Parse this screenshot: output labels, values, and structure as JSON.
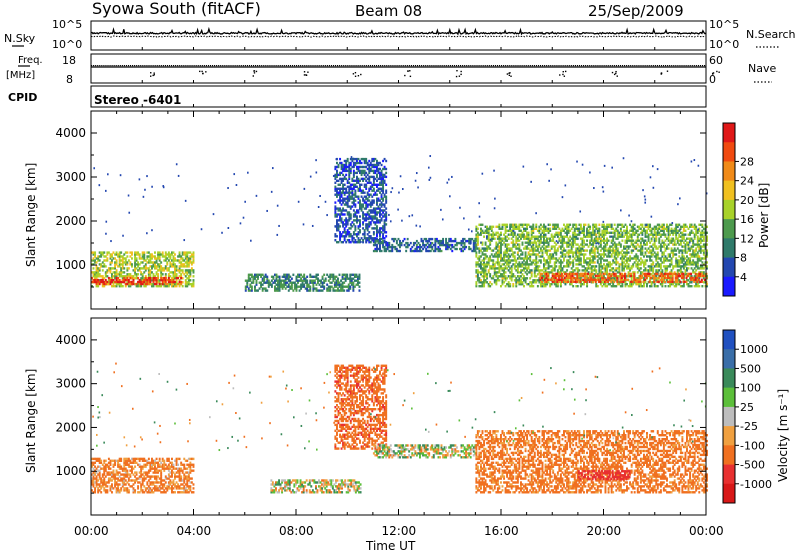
{
  "header": {
    "station": "Syowa South (fitACF)",
    "beam": "Beam 08",
    "date": "25/Sep/2009"
  },
  "noise_panel": {
    "left_label": "N.Sky",
    "right_label": "N.Search",
    "ticks_top": "10^5",
    "ticks_bottom": "10^0"
  },
  "freq_panel": {
    "left_label_1": "Freq.",
    "left_label_2": "[MHz]",
    "left_top": "18",
    "left_bottom": "8",
    "right_top": "60",
    "right_bottom": "0",
    "right_label": "Nave"
  },
  "cpid_panel": {
    "label": "CPID",
    "value": "Stereo -6401"
  },
  "time_axis": {
    "label": "Time UT",
    "ticks": [
      "00:00",
      "04:00",
      "08:00",
      "12:00",
      "16:00",
      "20:00",
      "00:00"
    ]
  },
  "range_axis": {
    "label": "Slant Range [km]",
    "ticks": [
      "1000",
      "2000",
      "3000",
      "4000"
    ]
  },
  "power_scale": {
    "label": "Power [dB]",
    "ticks": [
      "4",
      "8",
      "12",
      "16",
      "20",
      "24",
      "28"
    ],
    "colors": [
      "#1a1aff",
      "#2347b0",
      "#2f7a6a",
      "#4d9a4d",
      "#a8d22a",
      "#f0c020",
      "#f08a18",
      "#f04a10",
      "#e01818"
    ]
  },
  "velocity_scale": {
    "label": "Velocity [m s⁻¹]",
    "ticks": [
      "1000",
      "500",
      "100",
      "25",
      "-25",
      "-100",
      "-500",
      "-1000"
    ],
    "colors": [
      "#2050c0",
      "#3a6ea8",
      "#3a8a5a",
      "#5cbf3a",
      "#bdbdbd",
      "#f0a040",
      "#f07020",
      "#e83030",
      "#d81818"
    ]
  },
  "chart_data": [
    {
      "type": "heatmap",
      "title": "Power",
      "xlabel": "Time UT",
      "ylabel": "Slant Range [km]",
      "xlim": [
        "00:00",
        "24:00"
      ],
      "ylim": [
        0,
        4500
      ],
      "colorbar": "Power [dB]",
      "clim": [
        0,
        32
      ],
      "echo_regions": [
        {
          "t_start": 0.0,
          "t_end": 4.0,
          "range_start": 500,
          "range_end": 1300,
          "power_db": 16
        },
        {
          "t_start": 0.0,
          "t_end": 3.5,
          "range_start": 550,
          "range_end": 700,
          "power_db": 28
        },
        {
          "t_start": 6.0,
          "t_end": 10.5,
          "range_start": 400,
          "range_end": 800,
          "power_db": 10
        },
        {
          "t_start": 9.5,
          "t_end": 11.5,
          "range_start": 1500,
          "range_end": 3400,
          "power_db": 6
        },
        {
          "t_start": 11.0,
          "t_end": 15.0,
          "range_start": 1300,
          "range_end": 1600,
          "power_db": 7
        },
        {
          "t_start": 15.0,
          "t_end": 24.0,
          "range_start": 500,
          "range_end": 1900,
          "power_db": 14
        },
        {
          "t_start": 17.5,
          "t_end": 24.0,
          "range_start": 600,
          "range_end": 800,
          "power_db": 26
        }
      ]
    },
    {
      "type": "heatmap",
      "title": "Velocity",
      "xlabel": "Time UT",
      "ylabel": "Slant Range [km]",
      "xlim": [
        "00:00",
        "24:00"
      ],
      "ylim": [
        0,
        4500
      ],
      "colorbar": "Velocity [m s⁻¹]",
      "clim": [
        -1000,
        1000
      ],
      "echo_regions": [
        {
          "t_start": 0.0,
          "t_end": 4.0,
          "range_start": 500,
          "range_end": 1300,
          "velocity": -150
        },
        {
          "t_start": 7.0,
          "t_end": 10.5,
          "range_start": 500,
          "range_end": 800,
          "velocity": 0
        },
        {
          "t_start": 9.5,
          "t_end": 11.5,
          "range_start": 1500,
          "range_end": 3400,
          "velocity": -400
        },
        {
          "t_start": 11.0,
          "t_end": 15.0,
          "range_start": 1300,
          "range_end": 1600,
          "velocity": 0
        },
        {
          "t_start": 15.0,
          "t_end": 24.0,
          "range_start": 500,
          "range_end": 1900,
          "velocity": -200
        },
        {
          "t_start": 19.0,
          "t_end": 21.0,
          "range_start": 800,
          "range_end": 1000,
          "velocity": -800
        }
      ]
    }
  ]
}
